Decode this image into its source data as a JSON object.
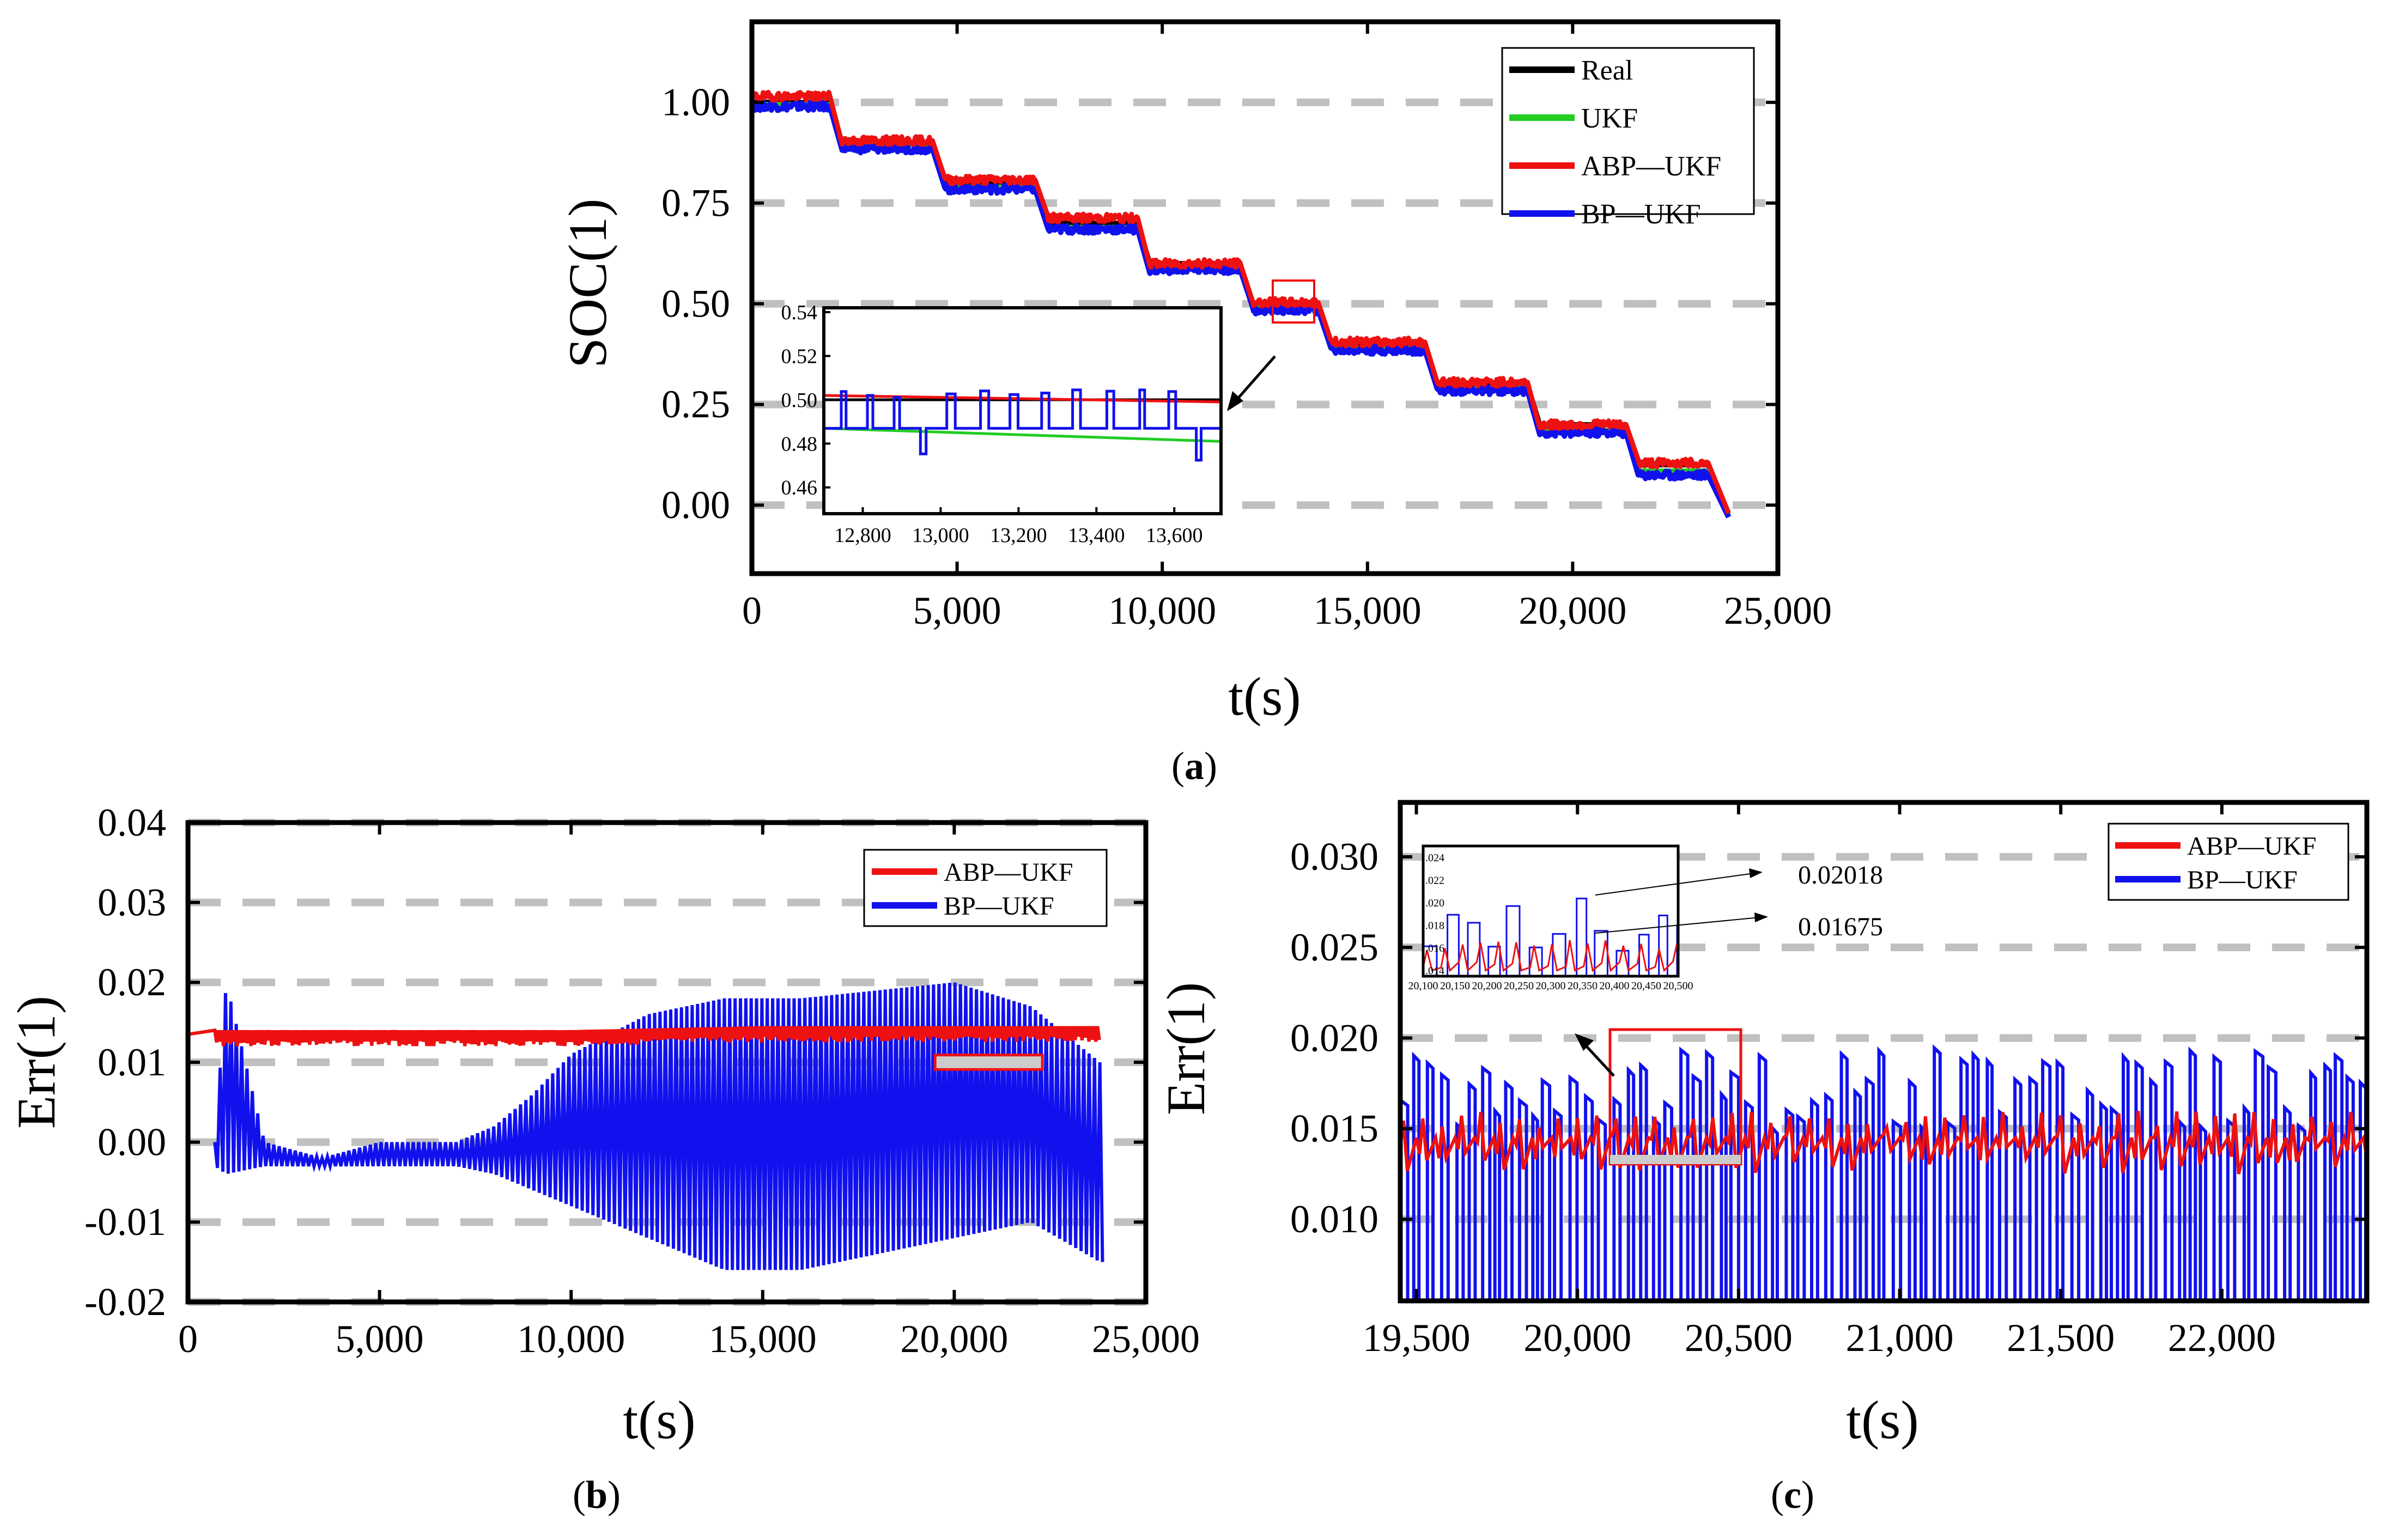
{
  "figure": {
    "panel_labels": {
      "a": "a",
      "b": "b",
      "c": "c"
    }
  },
  "colors": {
    "real": "#000000",
    "ukf": "#22cc22",
    "abp_ukf": "#ee1111",
    "bp_ukf": "#1111ee",
    "grid": "#c0c0c0"
  },
  "chart_data": [
    {
      "id": "a",
      "type": "line",
      "xlabel": "t(s)",
      "ylabel": "SOC(1)",
      "xlim": [
        0,
        25000
      ],
      "ylim": [
        -0.17,
        1.2
      ],
      "xticks": [
        0,
        5000,
        10000,
        15000,
        20000,
        25000
      ],
      "xtick_labels": [
        "0",
        "5,000",
        "10,000",
        "15,000",
        "20,000",
        "25,000"
      ],
      "yticks": [
        0.0,
        0.25,
        0.5,
        0.75,
        1.0
      ],
      "ytick_labels": [
        "0.00",
        "0.25",
        "0.50",
        "0.75",
        "1.00"
      ],
      "grid": "horizontal dashed",
      "legend_position": "top-right",
      "series": [
        {
          "name": "Real",
          "color_key": "real",
          "x": [
            0,
            1900,
            2200,
            4400,
            4700,
            6900,
            7200,
            9400,
            9700,
            11900,
            12200,
            13800,
            14100,
            16400,
            16700,
            18900,
            19200,
            21300,
            21600,
            23300,
            23800
          ],
          "y": [
            1.0,
            1.0,
            0.9,
            0.9,
            0.8,
            0.8,
            0.7,
            0.7,
            0.6,
            0.6,
            0.5,
            0.5,
            0.4,
            0.4,
            0.3,
            0.3,
            0.2,
            0.2,
            0.1,
            0.1,
            -0.02
          ]
        },
        {
          "name": "UKF",
          "color_key": "ukf",
          "x": [
            0,
            1900,
            2200,
            4400,
            4700,
            6900,
            7200,
            9400,
            9700,
            11900,
            12200,
            13800,
            14100,
            16400,
            16700,
            18900,
            19200,
            21300,
            21600,
            23300,
            23800
          ],
          "y": [
            0.995,
            0.995,
            0.893,
            0.893,
            0.79,
            0.79,
            0.69,
            0.69,
            0.59,
            0.59,
            0.49,
            0.49,
            0.39,
            0.39,
            0.29,
            0.29,
            0.185,
            0.185,
            0.085,
            0.085,
            -0.025
          ]
        },
        {
          "name": "ABP—UKF",
          "color_key": "abp_ukf",
          "x": [
            0,
            1900,
            2200,
            4400,
            4700,
            6900,
            7200,
            9400,
            9700,
            11900,
            12200,
            13800,
            14100,
            16400,
            16700,
            18900,
            19200,
            21300,
            21600,
            23300,
            23800
          ],
          "y": [
            1.015,
            1.015,
            0.905,
            0.905,
            0.808,
            0.808,
            0.713,
            0.713,
            0.6,
            0.6,
            0.503,
            0.503,
            0.405,
            0.405,
            0.305,
            0.305,
            0.2,
            0.2,
            0.105,
            0.105,
            -0.02
          ]
        },
        {
          "name": "BP—UKF",
          "color_key": "bp_ukf",
          "x": [
            0,
            1900,
            2200,
            4400,
            4700,
            6900,
            7200,
            9400,
            9700,
            11900,
            12200,
            13800,
            14100,
            16400,
            16700,
            18900,
            19200,
            21300,
            21600,
            23300,
            23800
          ],
          "y": [
            0.99,
            0.99,
            0.885,
            0.885,
            0.785,
            0.785,
            0.685,
            0.685,
            0.585,
            0.585,
            0.485,
            0.485,
            0.385,
            0.385,
            0.285,
            0.285,
            0.18,
            0.18,
            0.075,
            0.075,
            -0.03
          ]
        }
      ],
      "inset": {
        "xlim": [
          12700,
          13720
        ],
        "ylim": [
          0.448,
          0.542
        ],
        "xticks": [
          12800,
          13000,
          13200,
          13400,
          13600
        ],
        "xtick_labels": [
          "12,800",
          "13,000",
          "13,200",
          "13,400",
          "13,600"
        ],
        "yticks": [
          0.46,
          0.48,
          0.5,
          0.52,
          0.54
        ],
        "ytick_labels": [
          "0.46",
          "0.48",
          "0.50",
          "0.52",
          "0.54"
        ],
        "zoom_region": {
          "x": [
            12700,
            13720
          ],
          "y": [
            0.445,
            0.545
          ]
        },
        "series": [
          {
            "name": "Real",
            "color_key": "real",
            "x": [
              12700,
              13720
            ],
            "y": [
              0.5,
              0.5
            ]
          },
          {
            "name": "UKF",
            "color_key": "ukf",
            "x": [
              12700,
              13720
            ],
            "y": [
              0.487,
              0.481
            ]
          },
          {
            "name": "ABP—UKF",
            "color_key": "abp_ukf",
            "x": [
              12700,
              13720
            ],
            "y": [
              0.502,
              0.499
            ]
          },
          {
            "name": "BP—UKF",
            "color_key": "bp_ukf",
            "pattern": "pulses",
            "base": 0.487,
            "high": 0.505,
            "low": 0.47
          }
        ]
      }
    },
    {
      "id": "b",
      "type": "line",
      "xlabel": "t(s)",
      "ylabel": "Err(1)",
      "xlim": [
        0,
        25000
      ],
      "ylim": [
        -0.02,
        0.04
      ],
      "xticks": [
        0,
        5000,
        10000,
        15000,
        20000,
        25000
      ],
      "xtick_labels": [
        "0",
        "5,000",
        "10,000",
        "15,000",
        "20,000",
        "25,000"
      ],
      "yticks": [
        -0.02,
        -0.01,
        0.0,
        0.01,
        0.02,
        0.03,
        0.04
      ],
      "ytick_labels": [
        "-0.02",
        "-0.01",
        "0.00",
        "0.01",
        "0.02",
        "0.03",
        "0.04"
      ],
      "grid": "horizontal dashed",
      "legend_position": "top-right",
      "series": [
        {
          "name": "ABP—UKF",
          "color_key": "abp_ukf",
          "x": [
            0,
            5000,
            10000,
            15000,
            20000,
            23800
          ],
          "y": [
            0.0135,
            0.0135,
            0.0135,
            0.014,
            0.014,
            0.014
          ],
          "band": 0.0015
        },
        {
          "name": "BP—UKF",
          "color_key": "bp_ukf",
          "envelope": {
            "x": [
              700,
              1000,
              2000,
              3500,
              5000,
              7000,
              8000,
              9000,
              10000,
              12000,
              14000,
              16000,
              18000,
              20000,
              22000,
              23800
            ],
            "upper": [
              0.0,
              0.02,
              0.0,
              -0.002,
              0.0,
              0.0,
              0.002,
              0.006,
              0.011,
              0.016,
              0.018,
              0.018,
              0.019,
              0.02,
              0.017,
              0.01
            ],
            "lower": [
              -0.003,
              -0.004,
              -0.003,
              -0.003,
              -0.003,
              -0.003,
              -0.004,
              -0.006,
              -0.008,
              -0.012,
              -0.016,
              -0.016,
              -0.014,
              -0.012,
              -0.01,
              -0.015
            ]
          }
        }
      ],
      "marker_box": {
        "x": [
          19500,
          22300
        ],
        "y": [
          0.0095,
          0.0105
        ]
      }
    },
    {
      "id": "c",
      "type": "line",
      "xlabel": "t(s)",
      "ylabel": "Err(1)",
      "xlim": [
        19450,
        22450
      ],
      "ylim": [
        0.0055,
        0.033
      ],
      "xticks": [
        19500,
        20000,
        20500,
        21000,
        21500,
        22000
      ],
      "xtick_labels": [
        "19,500",
        "20,000",
        "20,500",
        "21,000",
        "21,500",
        "22,000"
      ],
      "yticks": [
        0.01,
        0.015,
        0.02,
        0.025,
        0.03
      ],
      "ytick_labels": [
        "0.010",
        "0.015",
        "0.020",
        "0.025",
        "0.030"
      ],
      "grid": "horizontal dashed",
      "legend_position": "top-right",
      "series": [
        {
          "name": "ABP—UKF",
          "color_key": "abp_ukf",
          "pattern": "sawtooth",
          "base": 0.014,
          "high": 0.016,
          "low": 0.0125
        },
        {
          "name": "BP—UKF",
          "color_key": "bp_ukf",
          "pattern": "square-pulses",
          "high": 0.0195,
          "low": 0.0055
        }
      ],
      "zoom_region": {
        "x": [
          20100,
          20500
        ],
        "y": [
          0.0138,
          0.0195
        ]
      },
      "inset": {
        "xlim": [
          20100,
          20500
        ],
        "ylim": [
          0.0135,
          0.025
        ],
        "ytick_labels": [
          ".014",
          ".016",
          ".018",
          ".020",
          ".022",
          ".024"
        ],
        "yticks": [
          0.014,
          0.016,
          0.018,
          0.02,
          0.022,
          0.024
        ],
        "xtick_labels": [
          "20,100",
          "20,150",
          "20,200",
          "20,250",
          "20,300",
          "20,350",
          "20,400",
          "20,450",
          "20,500"
        ],
        "xticks": [
          20100,
          20150,
          20200,
          20250,
          20300,
          20350,
          20400,
          20450,
          20500
        ]
      },
      "annotations": [
        {
          "text": "0.02018",
          "value": 0.02018
        },
        {
          "text": "0.01675",
          "value": 0.01675
        }
      ]
    }
  ]
}
